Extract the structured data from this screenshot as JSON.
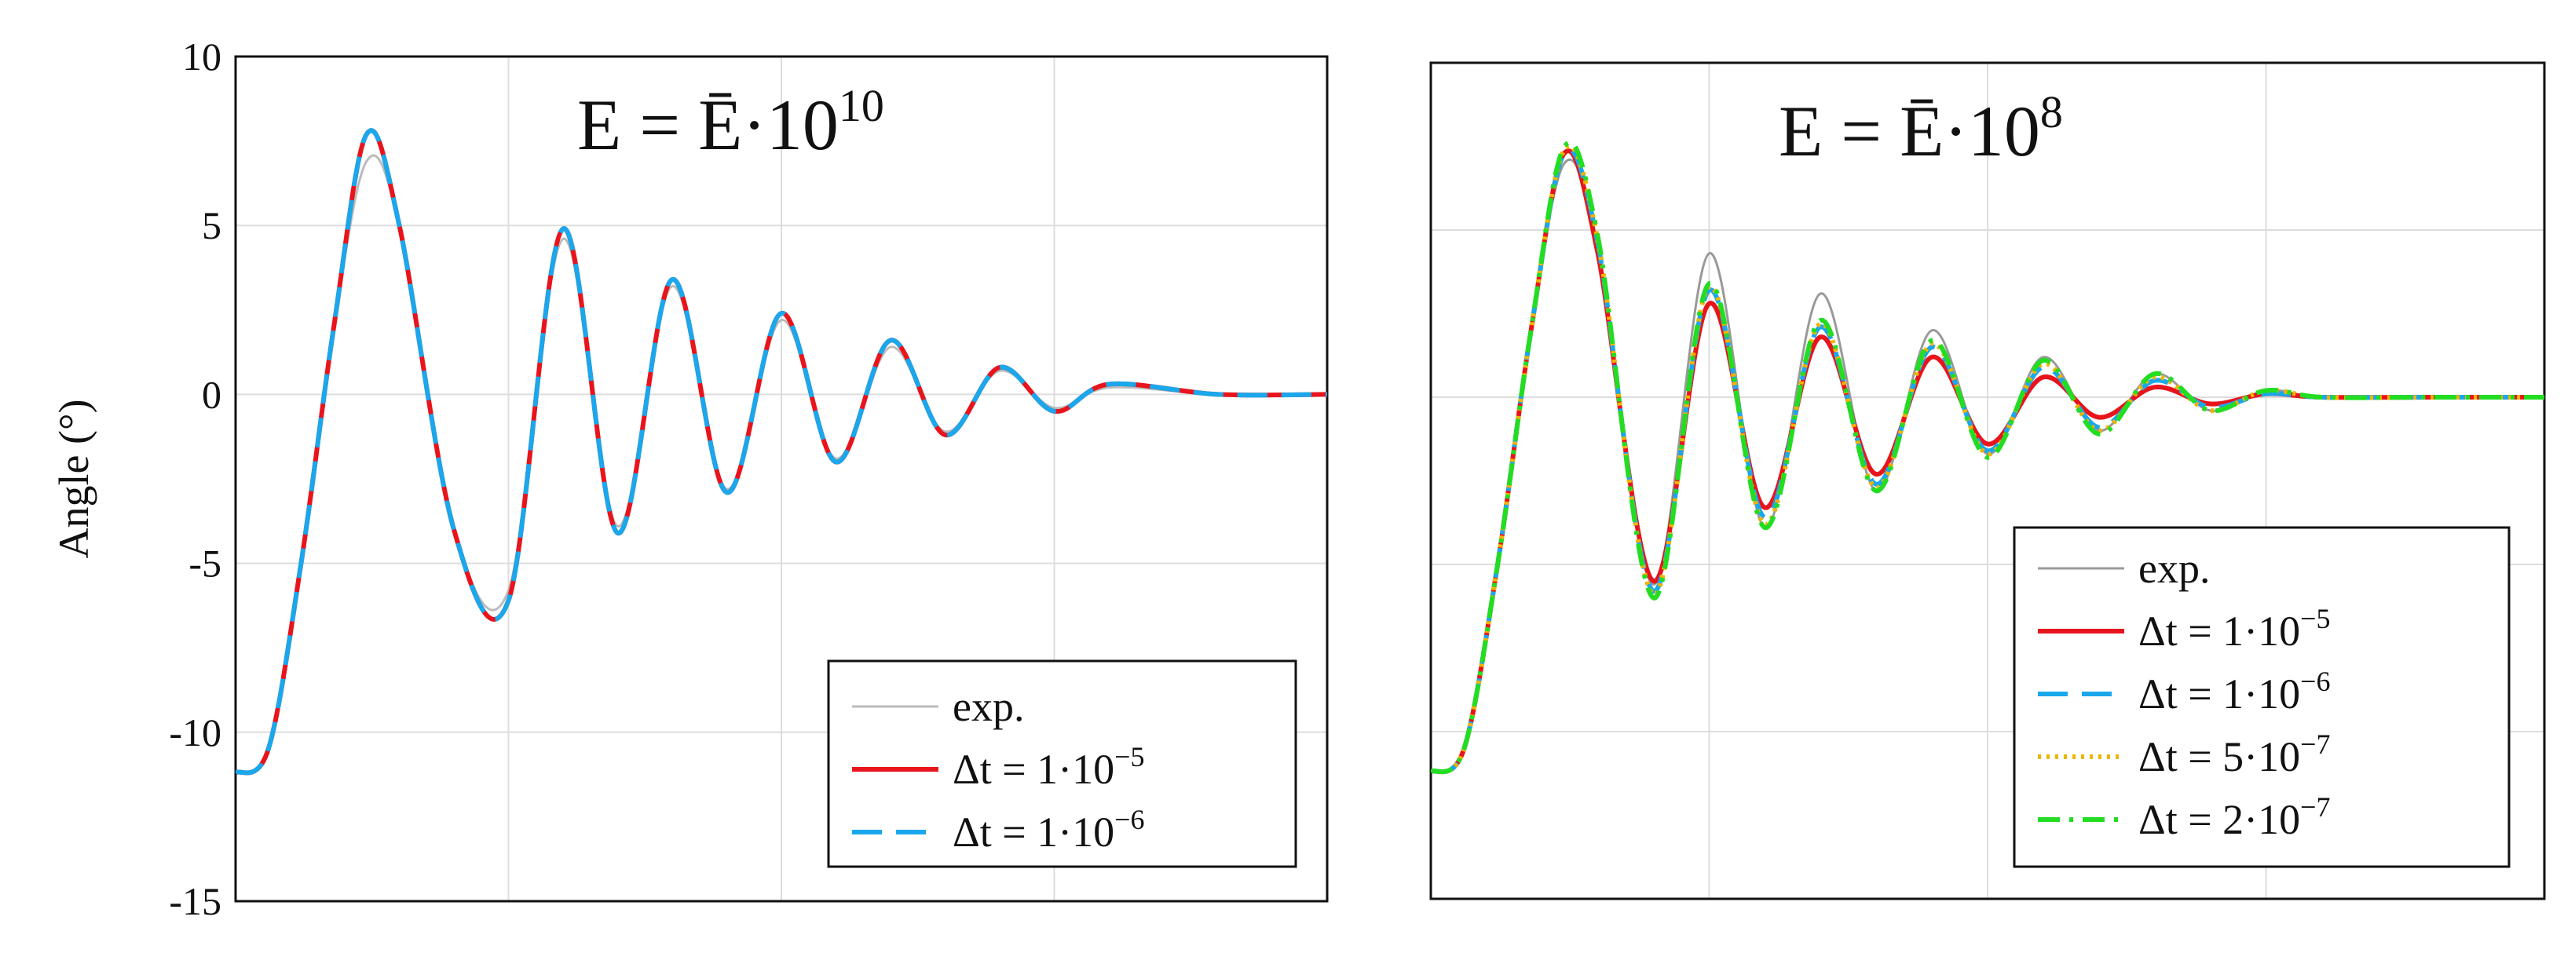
{
  "chart_data": [
    {
      "type": "line",
      "panel": "left",
      "annotation": {
        "base": "E = Ē·10",
        "exponent": "10"
      },
      "ylabel": "Angle (°)",
      "xlabel": "",
      "ylim": [
        -15,
        10
      ],
      "yticks": [
        "10",
        "5",
        "0",
        "-5",
        "-10",
        "-15"
      ],
      "ytick_values": [
        10,
        5,
        0,
        -5,
        -10,
        -15
      ],
      "xlim": [
        0,
        1
      ],
      "x_gridlines": [
        0.25,
        0.5,
        0.75
      ],
      "grid": true,
      "legend_position": "bottom-right",
      "series": [
        {
          "key": "exp",
          "name": "exp.",
          "color": "#bbbbbb",
          "dash": "solid",
          "x": [
            0,
            0.03,
            0.06,
            0.09,
            0.12,
            0.15,
            0.2,
            0.25,
            0.3,
            0.35,
            0.4,
            0.45,
            0.5,
            0.55,
            0.6,
            0.65,
            0.7,
            0.75,
            0.8,
            0.9,
            1.0
          ],
          "y": [
            -11.2,
            -10.5,
            -5,
            2,
            6.9,
            5,
            -4,
            -5.8,
            4.6,
            -3.9,
            3.2,
            -2.8,
            2.2,
            -1.9,
            1.4,
            -1.1,
            0.7,
            -0.4,
            0.2,
            0,
            0
          ]
        },
        {
          "key": "dt1e-5",
          "name": "Δt = 1·10",
          "exp": "−5",
          "color": "#e8141c",
          "dash": "solid",
          "x": [
            0,
            0.03,
            0.06,
            0.09,
            0.12,
            0.15,
            0.2,
            0.25,
            0.3,
            0.35,
            0.4,
            0.45,
            0.5,
            0.55,
            0.6,
            0.65,
            0.7,
            0.75,
            0.8,
            0.9,
            1.0
          ],
          "y": [
            -11.2,
            -10.5,
            -5,
            2,
            7.7,
            5,
            -4,
            -6.1,
            4.9,
            -4.1,
            3.4,
            -2.9,
            2.4,
            -2.0,
            1.6,
            -1.2,
            0.8,
            -0.5,
            0.3,
            0,
            0
          ]
        },
        {
          "key": "dt1e-6",
          "name": "Δt = 1·10",
          "exp": "−6",
          "color": "#1aa7ec",
          "dash": "dashed",
          "x": [
            0,
            0.03,
            0.06,
            0.09,
            0.12,
            0.15,
            0.2,
            0.25,
            0.3,
            0.35,
            0.4,
            0.45,
            0.5,
            0.55,
            0.6,
            0.65,
            0.7,
            0.75,
            0.8,
            0.9,
            1.0
          ],
          "y": [
            -11.2,
            -10.5,
            -5,
            2,
            7.7,
            5,
            -4,
            -6.1,
            4.9,
            -4.1,
            3.4,
            -2.9,
            2.4,
            -2.0,
            1.6,
            -1.2,
            0.8,
            -0.5,
            0.3,
            0,
            0
          ]
        }
      ]
    },
    {
      "type": "line",
      "panel": "right",
      "annotation": {
        "base": "E = Ē·10",
        "exponent": "8"
      },
      "ylabel": "",
      "xlabel": "",
      "ylim": [
        -15,
        10
      ],
      "ytick_values": [
        10,
        5,
        0,
        -5,
        -10,
        -15
      ],
      "xlim": [
        0,
        1
      ],
      "x_gridlines": [
        0.25,
        0.5,
        0.75
      ],
      "grid": true,
      "legend_position": "bottom-right",
      "series": [
        {
          "key": "exp",
          "name": "exp.",
          "color": "#999999",
          "dash": "solid",
          "x": [
            0,
            0.03,
            0.06,
            0.09,
            0.12,
            0.15,
            0.2,
            0.25,
            0.3,
            0.35,
            0.4,
            0.45,
            0.5,
            0.55,
            0.6,
            0.65,
            0.7,
            0.75,
            0.8,
            0.9,
            1.0
          ],
          "y": [
            -11.2,
            -10.5,
            -5,
            2,
            7.0,
            4.5,
            -5.6,
            4.3,
            -3.9,
            3.1,
            -2.8,
            2.0,
            -1.7,
            1.2,
            -1.0,
            0.7,
            -0.4,
            0.2,
            0,
            0,
            0
          ]
        },
        {
          "key": "dt1e-5",
          "name": "Δt = 1·10",
          "exp": "−5",
          "color": "#e8141c",
          "dash": "solid",
          "x": [
            0,
            0.03,
            0.06,
            0.09,
            0.12,
            0.15,
            0.2,
            0.25,
            0.3,
            0.35,
            0.4,
            0.45,
            0.5,
            0.55,
            0.6,
            0.65,
            0.7,
            0.75,
            0.8,
            0.9,
            1.0
          ],
          "y": [
            -11.2,
            -10.5,
            -5,
            2,
            7.3,
            4.3,
            -5.5,
            2.8,
            -3.3,
            1.8,
            -2.3,
            1.2,
            -1.4,
            0.6,
            -0.6,
            0.3,
            -0.2,
            0.1,
            0,
            0,
            0
          ]
        },
        {
          "key": "dt1e-6",
          "name": "Δt = 1·10",
          "exp": "−6",
          "color": "#1aa7ec",
          "dash": "dashed",
          "x": [
            0,
            0.03,
            0.06,
            0.09,
            0.12,
            0.15,
            0.2,
            0.25,
            0.3,
            0.35,
            0.4,
            0.45,
            0.5,
            0.55,
            0.6,
            0.65,
            0.7,
            0.75,
            0.8,
            0.9,
            1.0
          ],
          "y": [
            -11.2,
            -10.5,
            -5,
            2,
            7.3,
            4.6,
            -5.8,
            3.2,
            -3.6,
            2.1,
            -2.6,
            1.5,
            -1.6,
            0.9,
            -0.9,
            0.5,
            -0.3,
            0.1,
            0,
            0,
            0
          ]
        },
        {
          "key": "dt5e-7",
          "name": "Δt = 5·10",
          "exp": "−7",
          "color": "#f0b400",
          "dash": "dotted",
          "x": [
            0,
            0.03,
            0.06,
            0.09,
            0.12,
            0.15,
            0.2,
            0.25,
            0.3,
            0.35,
            0.4,
            0.45,
            0.5,
            0.55,
            0.6,
            0.65,
            0.7,
            0.75,
            0.8,
            0.9,
            1.0
          ],
          "y": [
            -11.2,
            -10.5,
            -5,
            2,
            7.4,
            4.7,
            -5.9,
            3.3,
            -3.8,
            2.2,
            -2.7,
            1.6,
            -1.7,
            1.0,
            -1.0,
            0.6,
            -0.4,
            0.2,
            0,
            0,
            0
          ]
        },
        {
          "key": "dt2e-7",
          "name": "Δt = 2·10",
          "exp": "−7",
          "color": "#22dd22",
          "dash": "dashdot",
          "x": [
            0,
            0.03,
            0.06,
            0.09,
            0.12,
            0.15,
            0.2,
            0.25,
            0.3,
            0.35,
            0.4,
            0.45,
            0.5,
            0.55,
            0.6,
            0.65,
            0.7,
            0.75,
            0.8,
            0.9,
            1.0
          ],
          "y": [
            -11.2,
            -10.5,
            -5,
            2,
            7.5,
            4.8,
            -6.0,
            3.4,
            -3.9,
            2.3,
            -2.8,
            1.7,
            -1.8,
            1.1,
            -1.1,
            0.7,
            -0.4,
            0.2,
            0,
            0,
            0
          ]
        }
      ]
    }
  ]
}
